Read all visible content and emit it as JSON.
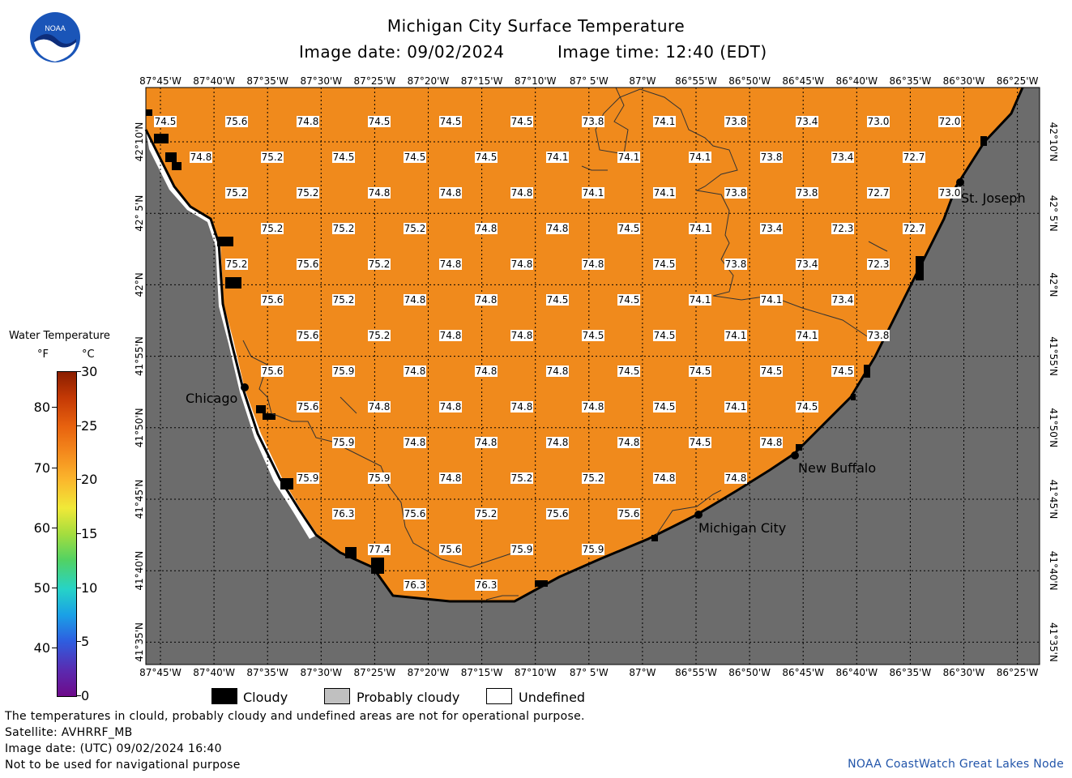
{
  "header": {
    "title": "Michigan City Surface Temperature",
    "image_date": "Image date: 09/02/2024",
    "image_time": "Image time: 12:40 (EDT)",
    "logo_text": "NOAA"
  },
  "colors": {
    "water": "#f08a1c",
    "land": "#6c6c6c",
    "cloudy": "#000000",
    "probably_cloudy": "#c0c0c0",
    "undefined": "#ffffff"
  },
  "axes": {
    "lon_labels": [
      "87°45'W",
      "87°40'W",
      "87°35'W",
      "87°30'W",
      "87°25'W",
      "87°20'W",
      "87°15'W",
      "87°10'W",
      "87° 5'W",
      "87°W",
      "86°55'W",
      "86°50'W",
      "86°45'W",
      "86°40'W",
      "86°35'W",
      "86°30'W",
      "86°25'W"
    ],
    "lat_labels": [
      "42°10'N",
      "42° 5'N",
      "42°N",
      "41°55'N",
      "41°50'N",
      "41°45'N",
      "41°40'N",
      "41°35'N"
    ]
  },
  "temperature_grid": [
    [
      74.5,
      75.6,
      74.8,
      74.5,
      74.5,
      74.5,
      73.8,
      74.1,
      73.8,
      73.4,
      73.0,
      72.0
    ],
    [
      74.8,
      75.2,
      74.5,
      74.5,
      74.5,
      74.1,
      74.1,
      74.1,
      73.8,
      73.4,
      72.7
    ],
    [
      75.2,
      75.2,
      74.8,
      74.8,
      74.8,
      74.1,
      74.1,
      73.8,
      73.8,
      72.7,
      73.0
    ],
    [
      75.2,
      75.2,
      75.2,
      74.8,
      74.8,
      74.5,
      74.1,
      73.4,
      72.3,
      72.7
    ],
    [
      75.2,
      75.6,
      75.2,
      74.8,
      74.8,
      74.8,
      74.5,
      73.8,
      73.4,
      72.3
    ],
    [
      75.6,
      75.2,
      74.8,
      74.8,
      74.5,
      74.5,
      74.1,
      74.1,
      73.4
    ],
    [
      75.6,
      75.2,
      74.8,
      74.8,
      74.5,
      74.5,
      74.1,
      74.1,
      73.8
    ],
    [
      75.6,
      75.9,
      74.8,
      74.8,
      74.8,
      74.5,
      74.5,
      74.5,
      74.5
    ],
    [
      75.6,
      74.8,
      74.8,
      74.8,
      74.8,
      74.5,
      74.1,
      74.5
    ],
    [
      75.9,
      74.8,
      74.8,
      74.8,
      74.8,
      74.5,
      74.8
    ],
    [
      75.9,
      75.9,
      74.8,
      75.2,
      75.2,
      74.8,
      74.8
    ],
    [
      76.3,
      75.6,
      75.2,
      75.6,
      75.6
    ],
    [
      77.4,
      75.6,
      75.9,
      75.9
    ],
    [
      76.3,
      76.3
    ]
  ],
  "places": [
    {
      "name": "Chicago"
    },
    {
      "name": "St. Joseph"
    },
    {
      "name": "New Buffalo"
    },
    {
      "name": "Michigan City"
    }
  ],
  "colorbar": {
    "title": "Water Temperature",
    "unit_f": "°F",
    "unit_c": "°C",
    "f_ticks": [
      "80",
      "70",
      "60",
      "50",
      "40"
    ],
    "c_ticks": [
      "30",
      "25",
      "20",
      "15",
      "10",
      "5",
      "0"
    ]
  },
  "legend": {
    "cloudy": "Cloudy",
    "probably_cloudy": "Probably cloudy",
    "undefined": "Undefined"
  },
  "footer": {
    "disclaimer": "The temperatures in clould, probably cloudy and undefined areas are not for operational purpose.",
    "satellite": "Satellite: AVHRRF_MB",
    "utc_date": "Image date: (UTC) 09/02/2024  16:40",
    "nav": "Not to be used for navigational purpose",
    "credit": "NOAA CoastWatch Great Lakes Node"
  }
}
